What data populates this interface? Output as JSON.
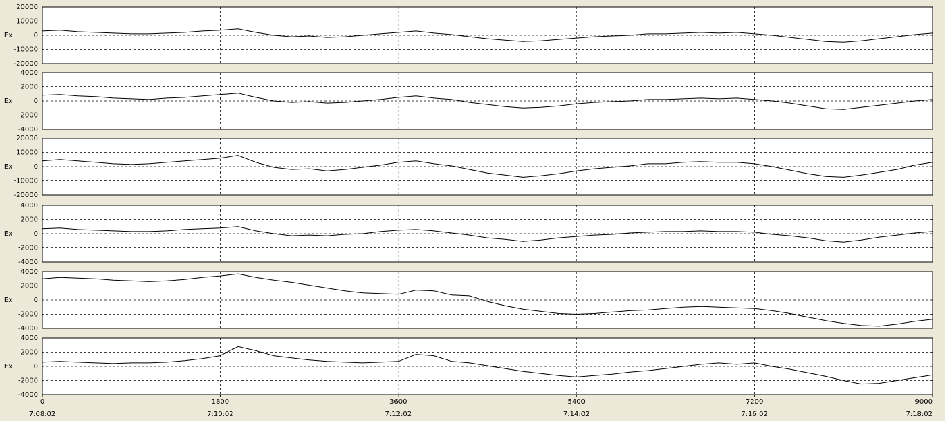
{
  "chart_data": {
    "type": "line",
    "x": [
      0,
      180,
      360,
      540,
      720,
      900,
      1080,
      1260,
      1440,
      1620,
      1800,
      1980,
      2160,
      2340,
      2520,
      2700,
      2880,
      3060,
      3240,
      3420,
      3600,
      3780,
      3960,
      4140,
      4320,
      4500,
      4680,
      4860,
      5040,
      5220,
      5400,
      5580,
      5760,
      5940,
      6120,
      6300,
      6480,
      6660,
      6840,
      7020,
      7200,
      7380,
      7560,
      7740,
      7920,
      8100,
      8280,
      8460,
      8640,
      8820,
      9000
    ],
    "xlim": [
      0,
      9000
    ],
    "xticks": [
      0,
      1800,
      3600,
      5400,
      7200,
      9000
    ],
    "xtick_times": [
      "7:08:02",
      "7:10:02",
      "7:12:02",
      "7:14:02",
      "7:16:02",
      "7:18:02"
    ],
    "color": "#000000",
    "grid": true,
    "panels": [
      {
        "ylabel": "Ex",
        "ylim": [
          -20000,
          20000
        ],
        "yticks": [
          -20000,
          -10000,
          0,
          10000,
          20000
        ],
        "values": [
          3000,
          3500,
          2500,
          2000,
          1500,
          1000,
          1000,
          1500,
          2000,
          3000,
          3500,
          4500,
          2000,
          0,
          -1000,
          -500,
          -1500,
          -1000,
          0,
          1000,
          2000,
          3000,
          1500,
          500,
          -1000,
          -2500,
          -3500,
          -4500,
          -4000,
          -3000,
          -2000,
          -1000,
          -500,
          0,
          1000,
          1000,
          1500,
          2000,
          1500,
          2000,
          1000,
          0,
          -1500,
          -3000,
          -4500,
          -5000,
          -4000,
          -2500,
          -1000,
          500,
          1500
        ]
      },
      {
        "ylabel": "Ex",
        "ylim": [
          -4000,
          4000
        ],
        "yticks": [
          -4000,
          -2000,
          0,
          2000,
          4000
        ],
        "values": [
          800,
          900,
          700,
          600,
          400,
          300,
          200,
          400,
          500,
          700,
          900,
          1100,
          500,
          0,
          -200,
          -100,
          -300,
          -200,
          0,
          200,
          500,
          700,
          400,
          200,
          -200,
          -500,
          -800,
          -1000,
          -900,
          -700,
          -400,
          -200,
          -100,
          0,
          200,
          200,
          300,
          400,
          300,
          400,
          200,
          0,
          -300,
          -700,
          -1100,
          -1200,
          -900,
          -600,
          -300,
          0,
          200
        ]
      },
      {
        "ylabel": "Ex",
        "ylim": [
          -20000,
          20000
        ],
        "yticks": [
          -20000,
          -10000,
          0,
          10000,
          20000
        ],
        "values": [
          4000,
          5000,
          4000,
          3000,
          2000,
          1500,
          2000,
          3000,
          4000,
          5000,
          6000,
          8000,
          3000,
          -500,
          -2000,
          -1500,
          -3000,
          -2000,
          -500,
          1000,
          3000,
          4000,
          2000,
          500,
          -2000,
          -4500,
          -6000,
          -7500,
          -6500,
          -5000,
          -3000,
          -1500,
          -500,
          500,
          2000,
          2000,
          3000,
          3500,
          3000,
          3000,
          2000,
          0,
          -2500,
          -5000,
          -7000,
          -7500,
          -6000,
          -4000,
          -2000,
          1000,
          3000
        ]
      },
      {
        "ylabel": "Ex",
        "ylim": [
          -4000,
          4000
        ],
        "yticks": [
          -4000,
          -2000,
          0,
          2000,
          4000
        ],
        "values": [
          700,
          800,
          600,
          500,
          400,
          300,
          300,
          400,
          600,
          700,
          800,
          1000,
          400,
          0,
          -300,
          -200,
          -300,
          -100,
          0,
          300,
          500,
          600,
          400,
          100,
          -200,
          -600,
          -800,
          -1100,
          -900,
          -600,
          -400,
          -200,
          -100,
          100,
          200,
          300,
          300,
          400,
          300,
          300,
          200,
          -100,
          -300,
          -600,
          -1000,
          -1200,
          -900,
          -500,
          -200,
          100,
          300
        ]
      },
      {
        "ylabel": "Ex",
        "ylim": [
          -4000,
          4000
        ],
        "yticks": [
          -4000,
          -2000,
          0,
          2000,
          4000
        ],
        "values": [
          3000,
          3200,
          3100,
          3000,
          2800,
          2700,
          2600,
          2700,
          2900,
          3200,
          3400,
          3700,
          3200,
          2800,
          2500,
          2100,
          1700,
          1300,
          1000,
          900,
          800,
          1400,
          1300,
          700,
          600,
          -200,
          -800,
          -1300,
          -1600,
          -1900,
          -2000,
          -1900,
          -1700,
          -1500,
          -1400,
          -1200,
          -1000,
          -900,
          -1000,
          -1100,
          -1200,
          -1500,
          -1900,
          -2400,
          -2900,
          -3300,
          -3600,
          -3700,
          -3400,
          -3000,
          -2700
        ]
      },
      {
        "ylabel": "Ex",
        "ylim": [
          -4000,
          4000
        ],
        "yticks": [
          -4000,
          -2000,
          0,
          2000,
          4000
        ],
        "values": [
          600,
          700,
          600,
          500,
          400,
          500,
          500,
          600,
          800,
          1100,
          1500,
          2800,
          2200,
          1500,
          1200,
          900,
          700,
          600,
          500,
          600,
          700,
          1700,
          1500,
          700,
          500,
          100,
          -300,
          -700,
          -1000,
          -1300,
          -1500,
          -1300,
          -1100,
          -800,
          -600,
          -300,
          0,
          300,
          500,
          300,
          500,
          0,
          -400,
          -900,
          -1400,
          -2000,
          -2500,
          -2400,
          -2000,
          -1600,
          -1200
        ]
      }
    ]
  }
}
